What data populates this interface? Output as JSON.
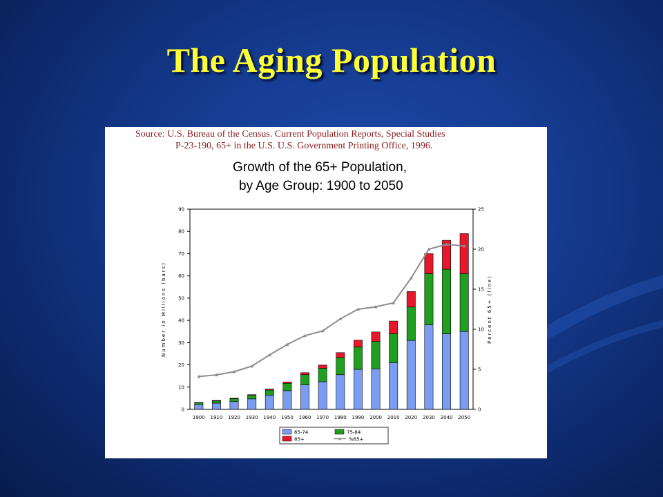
{
  "slide": {
    "title": "The Aging Population",
    "source_line1": "Source: U.S. Bureau of the Census. Current Population Reports, Special Studies",
    "source_line2": "P-23-190, 65+ in the U.S.  U.S. Government Printing Office, 1996."
  },
  "colors": {
    "background": "#163d93",
    "title": "#ffff33",
    "source": "#8b1a1a",
    "age_65_74": "#7b9cf0",
    "age_75_84": "#1f9e1f",
    "age_85_plus": "#e8182c",
    "percent_line": "#8c8c8c"
  },
  "chart_data": {
    "type": "bar",
    "stacked": true,
    "title_line1": "Growth of the 65+ Population,",
    "title_line2": "by Age Group:  1900 to 2050",
    "ylabel_left": "Number in Millions (bars)",
    "ylabel_right": "Percent 65+ (line)",
    "ylim_left": [
      0,
      90
    ],
    "ylim_right": [
      0,
      25
    ],
    "yticks_left": [
      "0",
      "10",
      "20",
      "30",
      "40",
      "50",
      "60",
      "70",
      "80",
      "90"
    ],
    "yticks_right": [
      "0",
      "5",
      "10",
      "15",
      "20",
      "25"
    ],
    "categories": [
      "1900",
      "1910",
      "1920",
      "1930",
      "1940",
      "1950",
      "1960",
      "1970",
      "1980",
      "1990",
      "2000",
      "2010",
      "2020",
      "2030",
      "2040",
      "2050"
    ],
    "series": [
      {
        "name": "65-74",
        "kind": "bar",
        "axis": "left",
        "values": [
          2.2,
          2.8,
          3.5,
          4.7,
          6.4,
          8.4,
          11.0,
          12.4,
          15.6,
          18.0,
          18.2,
          21.0,
          31.0,
          38.0,
          34.0,
          35.0
        ]
      },
      {
        "name": "75-84",
        "kind": "bar",
        "axis": "left",
        "values": [
          0.8,
          1.0,
          1.3,
          1.6,
          2.3,
          3.3,
          4.6,
          6.1,
          7.7,
          10.0,
          12.3,
          13.0,
          15.0,
          23.0,
          29.0,
          26.0
        ]
      },
      {
        "name": "85+",
        "kind": "bar",
        "axis": "left",
        "values": [
          0.1,
          0.2,
          0.2,
          0.3,
          0.4,
          0.6,
          0.9,
          1.4,
          2.2,
          3.1,
          4.3,
          5.7,
          7.0,
          9.0,
          13.0,
          18.0
        ]
      },
      {
        "name": "%65+",
        "kind": "line",
        "axis": "right",
        "values": [
          4.1,
          4.3,
          4.7,
          5.4,
          6.8,
          8.1,
          9.2,
          9.8,
          11.3,
          12.5,
          12.8,
          13.3,
          16.4,
          20.0,
          20.6,
          20.4
        ]
      }
    ],
    "legend": {
      "position": "bottom",
      "entries": [
        "65-74",
        "75-84",
        "85+",
        "%65+"
      ]
    }
  }
}
